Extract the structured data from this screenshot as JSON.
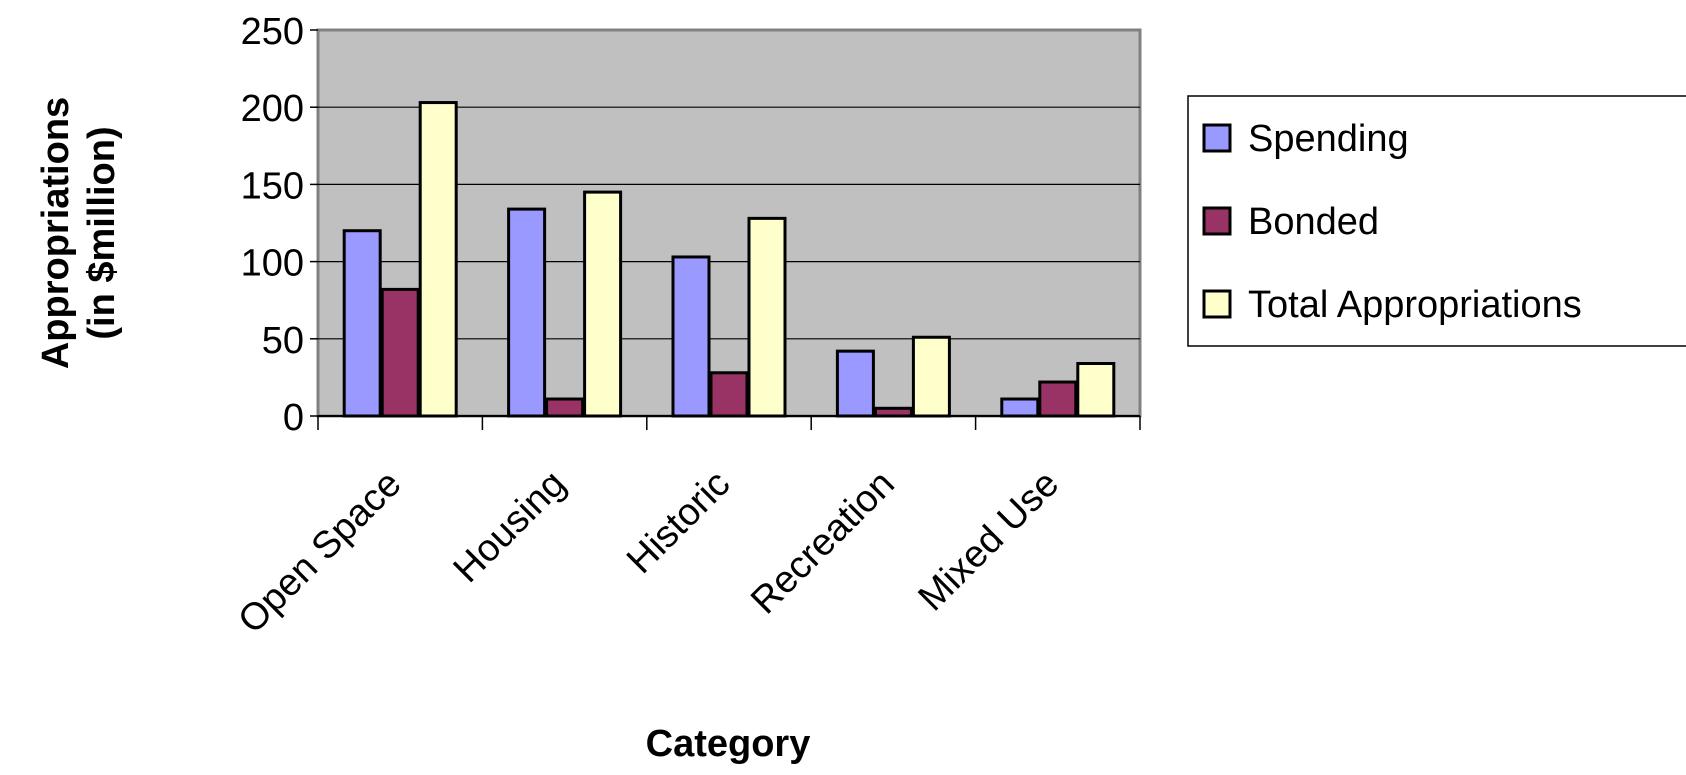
{
  "chart_data": {
    "type": "bar",
    "xlabel": "Category",
    "ylabel": "Appropriations (in $million)",
    "ylabel_lines": [
      "Appropriations",
      "(in $million)"
    ],
    "categories": [
      "Open Space",
      "Housing",
      "Historic",
      "Recreation",
      "Mixed Use"
    ],
    "series": [
      {
        "name": "Spending",
        "values": [
          120,
          134,
          103,
          42,
          11
        ]
      },
      {
        "name": "Bonded",
        "values": [
          82,
          11,
          28,
          5,
          22
        ]
      },
      {
        "name": "Total Appropriations",
        "values": [
          203,
          145,
          128,
          51,
          34
        ]
      }
    ],
    "ylim": [
      0,
      250
    ],
    "yticks": [
      "0",
      "50",
      "100",
      "150",
      "200",
      "250"
    ],
    "grid": true,
    "legend_position": "right",
    "colors": {
      "plot_background": "#c0c0c0",
      "series": [
        "#9999ff",
        "#993366",
        "#ffffcc"
      ],
      "gridline": "#000000",
      "bar_outline": "#000000"
    }
  }
}
